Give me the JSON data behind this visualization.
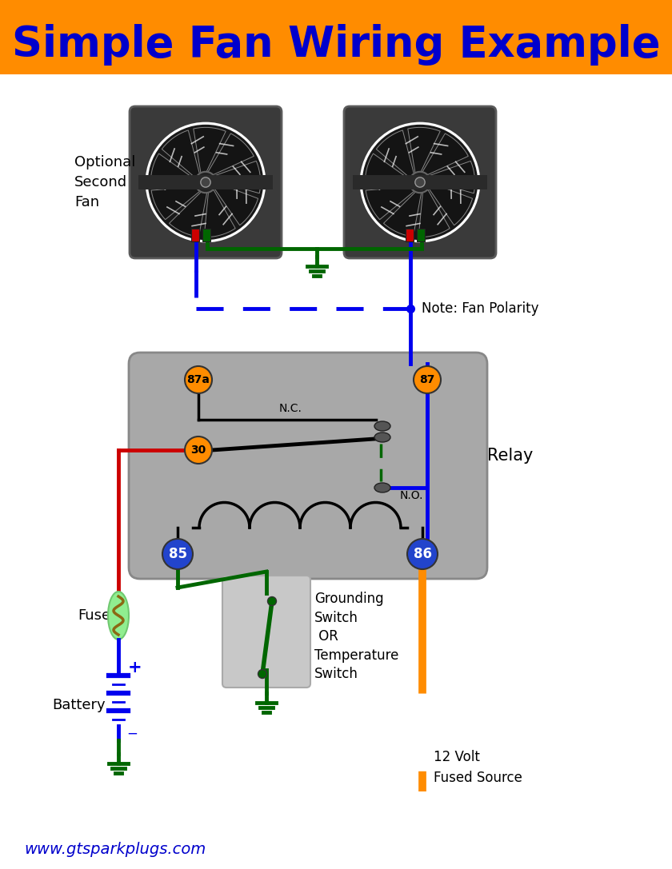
{
  "title": "Simple Fan Wiring Example",
  "title_color": "#0000CC",
  "title_bg_color": "#FF8C00",
  "bg_color": "#FFFFFF",
  "website": "www.gtsparkplugs.com",
  "website_color": "#0000CC",
  "relay_bg_color": "#A8A8A8",
  "relay_label": "Relay",
  "orange_terminal_color": "#FF8C00",
  "blue_terminal_color": "#2244CC",
  "wire_blue": "#0000EE",
  "wire_red": "#CC0000",
  "wire_green": "#006600",
  "wire_orange": "#FF8C00",
  "switch_box_color": "#C8C8C8",
  "fuse_bg_color": "#90EE90",
  "fuse_wire_color": "#8B6914",
  "label_optional": "Optional\nSecond\nFan",
  "label_note": "Note: Fan Polarity",
  "label_nc": "N.C.",
  "label_no": "N.O.",
  "label_fuse": "Fuse",
  "label_battery": "Battery",
  "label_relay": "Relay",
  "label_ground_switch": "Grounding\nSwitch\n OR\nTemperature\nSwitch",
  "label_volt": "12 Volt\nFused Source",
  "label_website": "www.gtsparkplugs.com"
}
